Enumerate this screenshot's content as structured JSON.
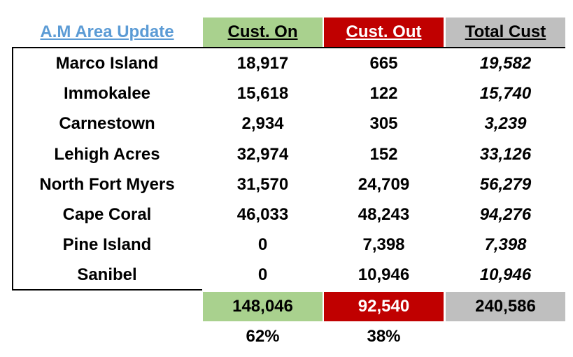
{
  "header": {
    "title": "A.M Area Update",
    "columns": [
      "Cust. On",
      "Cust. Out",
      "Total Cust"
    ]
  },
  "table": {
    "rows": [
      [
        "Marco Island",
        "18,917",
        "665",
        "19,582"
      ],
      [
        "Immokalee",
        "15,618",
        "122",
        "15,740"
      ],
      [
        "Carnestown",
        "2,934",
        "305",
        "3,239"
      ],
      [
        "Lehigh Acres",
        "32,974",
        "152",
        "33,126"
      ],
      [
        "North Fort Myers",
        "31,570",
        "24,709",
        "56,279"
      ],
      [
        "Cape Coral",
        "46,033",
        "48,243",
        "94,276"
      ],
      [
        "Pine Island",
        "0",
        "7,398",
        "7,398"
      ],
      [
        "Sanibel",
        "0",
        "10,946",
        "10,946"
      ]
    ]
  },
  "totals": [
    "148,046",
    "92,540",
    "240,586"
  ],
  "percentages": [
    "62%",
    "38%"
  ]
}
